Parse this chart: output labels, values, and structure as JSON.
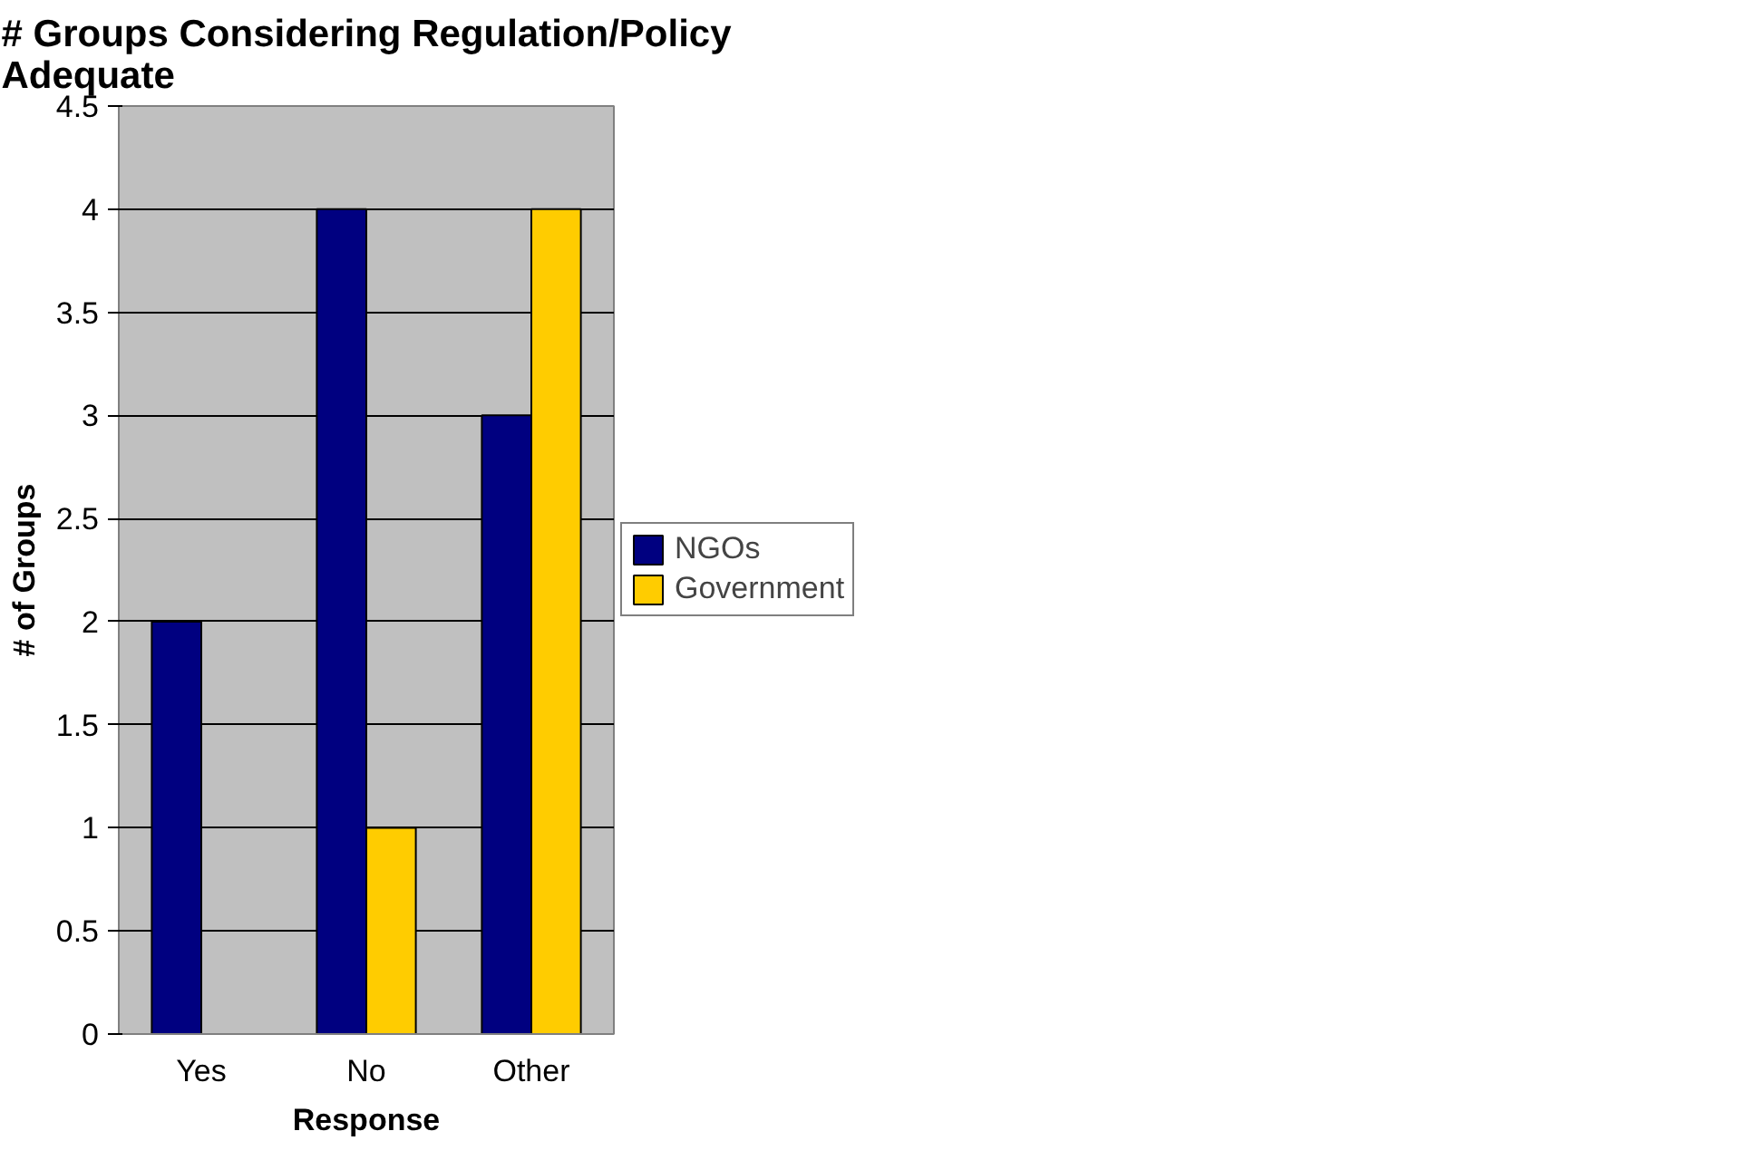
{
  "chart_data": {
    "type": "bar",
    "title": "# Groups Considering Regulation/Policy\nAdequate",
    "xlabel": "Response",
    "ylabel": "# of Groups",
    "categories": [
      "Yes",
      "No",
      "Other"
    ],
    "series": [
      {
        "name": "NGOs",
        "color": "#000080",
        "values": [
          2,
          4,
          3
        ]
      },
      {
        "name": "Government",
        "color": "#ffcc00",
        "values": [
          null,
          1,
          4
        ]
      }
    ],
    "ylim": [
      0,
      4.5
    ],
    "yticks": [
      0,
      0.5,
      1,
      1.5,
      2,
      2.5,
      3,
      3.5,
      4,
      4.5
    ],
    "grid": "y",
    "legend": "right"
  }
}
